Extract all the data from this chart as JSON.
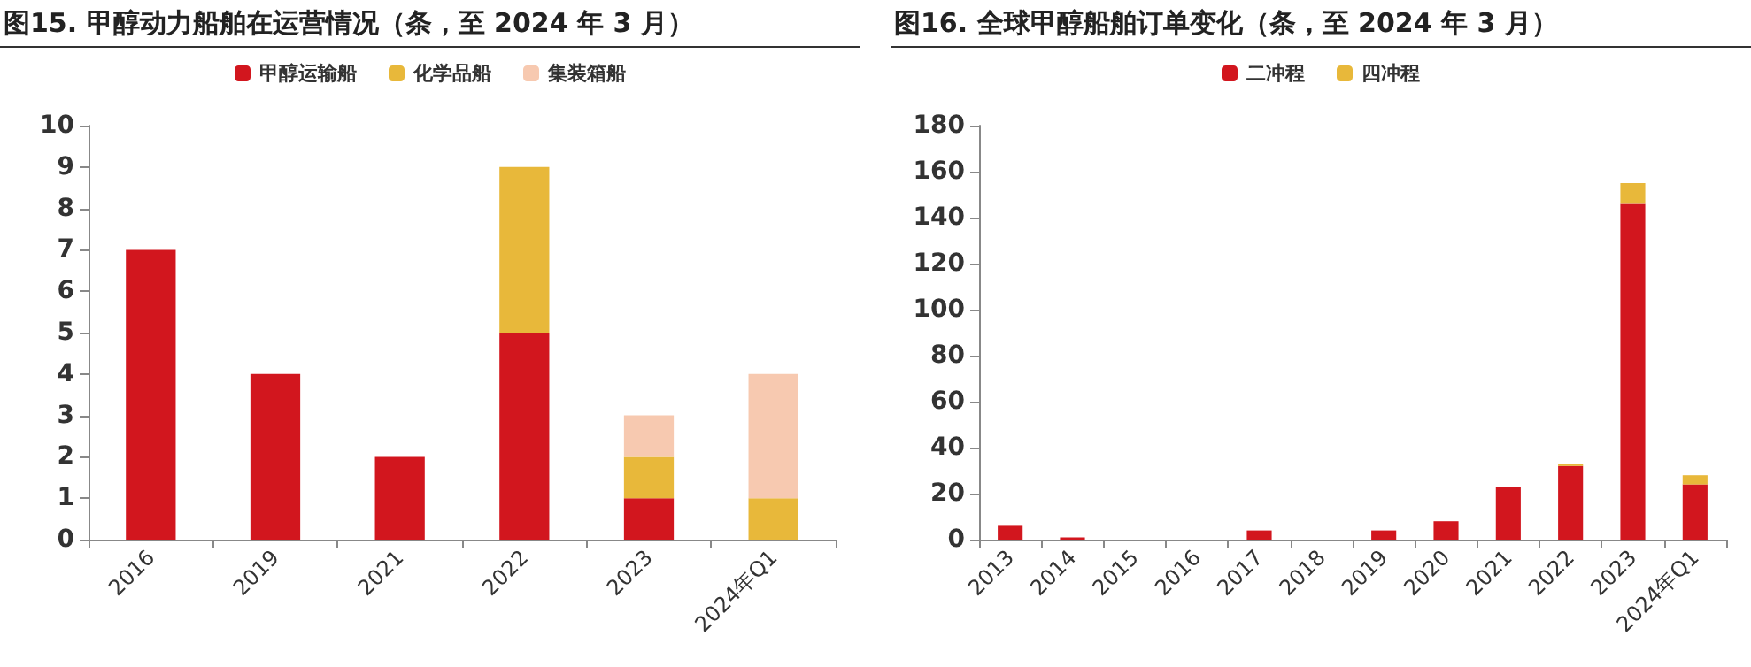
{
  "chart_data": [
    {
      "type": "bar",
      "title": "图15. 甲醇动力船舶在运营情况（条，至 2024 年 3 月）",
      "categories": [
        "2016",
        "2019",
        "2021",
        "2022",
        "2023",
        "2024年Q1"
      ],
      "stacked": true,
      "legend": "top",
      "grid": false,
      "ylim": [
        0,
        10
      ],
      "yticks": [
        0,
        1,
        2,
        3,
        4,
        5,
        6,
        7,
        8,
        9,
        10
      ],
      "series": [
        {
          "name": "甲醇运输船",
          "color": "#d2161e",
          "values": [
            7,
            4,
            2,
            5,
            1,
            0
          ]
        },
        {
          "name": "化学品船",
          "color": "#e8b83a",
          "values": [
            0,
            0,
            0,
            4,
            1,
            1
          ]
        },
        {
          "name": "集装箱船",
          "color": "#f7c9b0",
          "values": [
            0,
            0,
            0,
            0,
            1,
            3
          ]
        }
      ]
    },
    {
      "type": "bar",
      "title": "图16. 全球甲醇船舶订单变化（条，至 2024 年 3 月）",
      "categories": [
        "2013",
        "2014",
        "2015",
        "2016",
        "2017",
        "2018",
        "2019",
        "2020",
        "2021",
        "2022",
        "2023",
        "2024年Q1"
      ],
      "stacked": true,
      "legend": "top",
      "grid": false,
      "ylim": [
        0,
        180
      ],
      "yticks": [
        0,
        20,
        40,
        60,
        80,
        100,
        120,
        140,
        160,
        180
      ],
      "series": [
        {
          "name": "二冲程",
          "color": "#d2161e",
          "values": [
            6,
            1,
            0,
            0,
            4,
            0,
            4,
            8,
            23,
            32,
            146,
            24
          ]
        },
        {
          "name": "四冲程",
          "color": "#e8b83a",
          "values": [
            0,
            0,
            0,
            0,
            0,
            0,
            0,
            0,
            0,
            1,
            9,
            4
          ]
        }
      ]
    }
  ]
}
